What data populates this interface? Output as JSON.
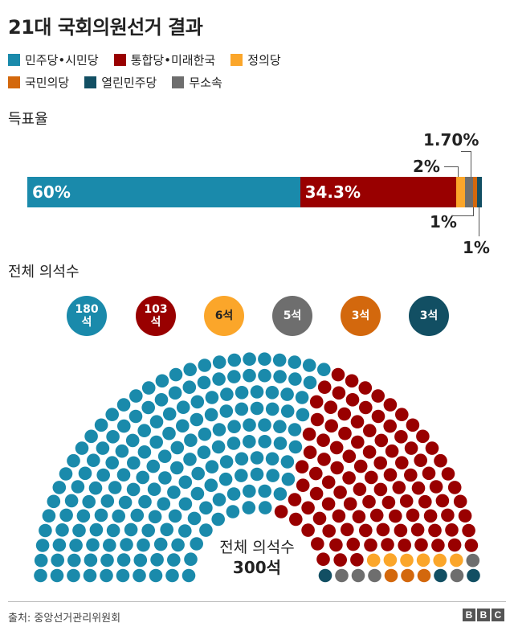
{
  "title": "21대 국회의원선거 결과",
  "legend": [
    {
      "label": "민주당•시민당",
      "color": "#1a8aab"
    },
    {
      "label": "통합당•미래한국",
      "color": "#990000"
    },
    {
      "label": "정의당",
      "color": "#fba62a"
    },
    {
      "label": "국민의당",
      "color": "#d3680d"
    },
    {
      "label": "열린민주당",
      "color": "#124f63"
    },
    {
      "label": "무소속",
      "color": "#6e6e6e"
    }
  ],
  "vote_section_label": "득표율",
  "seat_section_label": "전체 의석수",
  "chart_data": [
    {
      "type": "bar",
      "orientation": "horizontal-stacked",
      "title": "득표율",
      "series": [
        {
          "label": "민주당•시민당",
          "value": 60,
          "display": "60%",
          "color": "#1a8aab"
        },
        {
          "label": "통합당•미래한국",
          "value": 34.3,
          "display": "34.3%",
          "color": "#990000"
        },
        {
          "label": "정의당",
          "value": 2,
          "display": "2%",
          "color": "#fba62a"
        },
        {
          "label": "무소속",
          "value": 1.7,
          "display": "1.70%",
          "color": "#6e6e6e"
        },
        {
          "label": "국민의당",
          "value": 1,
          "display": "1%",
          "color": "#d3680d"
        },
        {
          "label": "열린민주당",
          "value": 1,
          "display": "1%",
          "color": "#124f63"
        }
      ],
      "xlim": [
        0,
        100
      ]
    },
    {
      "type": "hemicycle",
      "title": "전체 의석수",
      "total_label": "전체 의석수",
      "total_value": "300석",
      "total": 300,
      "parties": [
        {
          "label": "민주당•시민당",
          "seats": 180,
          "display": "180석",
          "color": "#1a8aab"
        },
        {
          "label": "통합당•미래한국",
          "seats": 103,
          "display": "103석",
          "color": "#990000"
        },
        {
          "label": "정의당",
          "seats": 6,
          "display": "6석",
          "color": "#fba62a"
        },
        {
          "label": "무소속",
          "seats": 5,
          "display": "5석",
          "color": "#6e6e6e"
        },
        {
          "label": "국민의당",
          "seats": 3,
          "display": "3석",
          "color": "#d3680d"
        },
        {
          "label": "열린민주당",
          "seats": 3,
          "display": "3석",
          "color": "#124f63"
        }
      ]
    }
  ],
  "source": "출처: 중앙선거관리위원회",
  "logo": [
    "B",
    "B",
    "C"
  ]
}
